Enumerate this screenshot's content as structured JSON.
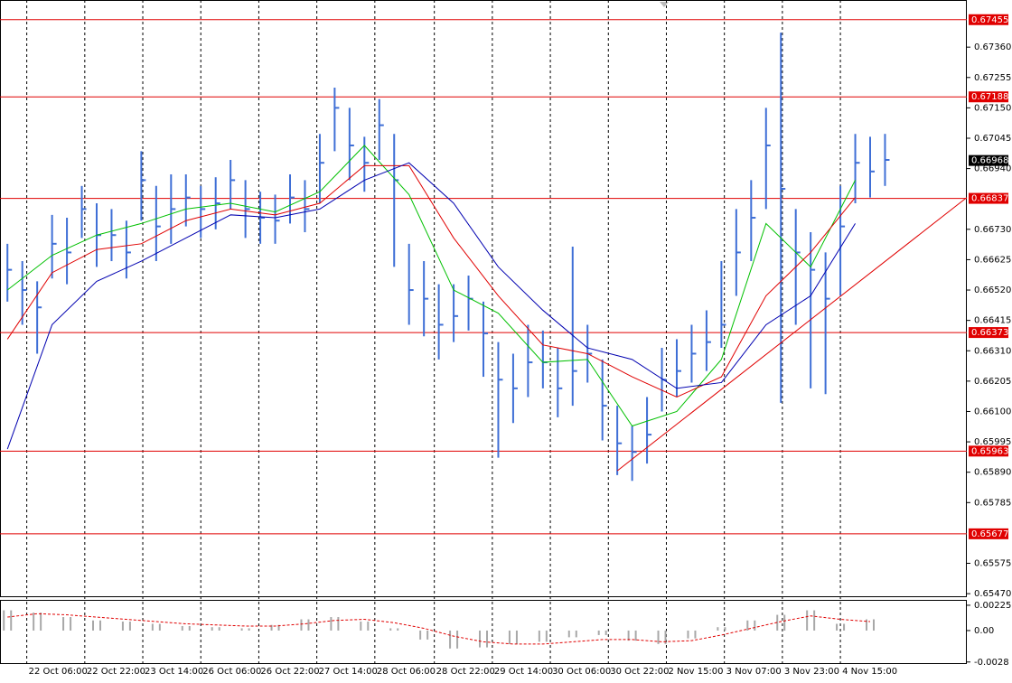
{
  "chart_data": [
    {
      "type": "ohlc",
      "xlim": [
        -0.5,
        64.5
      ],
      "ylim": [
        0.65461,
        0.67523
      ],
      "xticks": [
        {
          "value": 1.3,
          "label": "22 Oct 06:00"
        },
        {
          "value": 5.2,
          "label": "22 Oct 22:00"
        },
        {
          "value": 9.1,
          "label": "23 Oct 14:00"
        },
        {
          "value": 13.0,
          "label": "26 Oct 06:00"
        },
        {
          "value": 16.9,
          "label": "26 Oct 22:00"
        },
        {
          "value": 20.8,
          "label": "27 Oct 14:00"
        },
        {
          "value": 24.7,
          "label": "28 Oct 06:00"
        },
        {
          "value": 28.7,
          "label": "28 Oct 22:00"
        },
        {
          "value": 32.6,
          "label": "29 Oct 14:00"
        },
        {
          "value": 36.5,
          "label": "30 Oct 06:00"
        },
        {
          "value": 40.4,
          "label": "30 Oct 22:00"
        },
        {
          "value": 44.3,
          "label": "2 Nov 15:00"
        },
        {
          "value": 48.2,
          "label": "3 Nov 07:00"
        },
        {
          "value": 52.1,
          "label": "3 Nov 23:00"
        },
        {
          "value": 56.0,
          "label": "4 Nov 15:00"
        }
      ],
      "yticks": [
        {
          "value": 0.6736,
          "label": "0.67360"
        },
        {
          "value": 0.67255,
          "label": "0.67255"
        },
        {
          "value": 0.6715,
          "label": "0.67150"
        },
        {
          "value": 0.67045,
          "label": "0.67045"
        },
        {
          "value": 0.6694,
          "label": "0.66940"
        },
        {
          "value": 0.6673,
          "label": "0.66730"
        },
        {
          "value": 0.66625,
          "label": "0.66625"
        },
        {
          "value": 0.6652,
          "label": "0.66520"
        },
        {
          "value": 0.66415,
          "label": "0.66415"
        },
        {
          "value": 0.6631,
          "label": "0.66310"
        },
        {
          "value": 0.66205,
          "label": "0.66205"
        },
        {
          "value": 0.661,
          "label": "0.66100"
        },
        {
          "value": 0.65995,
          "label": "0.65995"
        },
        {
          "value": 0.6589,
          "label": "0.65890"
        },
        {
          "value": 0.65785,
          "label": "0.65785"
        },
        {
          "value": 0.65575,
          "label": "0.65575"
        },
        {
          "value": 0.6547,
          "label": "0.65470"
        }
      ],
      "color": "#3f6fd6",
      "high": [
        0.6668,
        0.6662,
        0.6655,
        0.6678,
        0.6677,
        0.6688,
        0.6682,
        0.668,
        0.6676,
        0.67,
        0.6688,
        0.6692,
        0.6692,
        0.6688,
        0.6691,
        0.6697,
        0.669,
        0.6686,
        0.6685,
        0.6692,
        0.669,
        0.6706,
        0.6722,
        0.6715,
        0.6705,
        0.6718,
        0.6706,
        0.6668,
        0.6662,
        0.6654,
        0.6654,
        0.6657,
        0.6648,
        0.6634,
        0.663,
        0.664,
        0.6638,
        0.6632,
        0.6667,
        0.664,
        0.6628,
        0.6612,
        0.6605,
        0.6615,
        0.6632,
        0.6635,
        0.664,
        0.6645,
        0.6662,
        0.668,
        0.669,
        0.6715,
        0.6741,
        0.668,
        0.6672,
        0.6665,
        0.6688,
        0.6706,
        0.6705,
        0.6706
      ],
      "low": [
        0.6648,
        0.664,
        0.663,
        0.6656,
        0.6654,
        0.667,
        0.666,
        0.6662,
        0.6656,
        0.6676,
        0.6662,
        0.6668,
        0.6674,
        0.667,
        0.6673,
        0.668,
        0.667,
        0.6668,
        0.6668,
        0.6675,
        0.6672,
        0.6682,
        0.67,
        0.669,
        0.6686,
        0.6697,
        0.666,
        0.664,
        0.6636,
        0.6628,
        0.6634,
        0.6638,
        0.6622,
        0.6594,
        0.6606,
        0.6615,
        0.6618,
        0.6608,
        0.6612,
        0.662,
        0.66,
        0.6588,
        0.6586,
        0.6592,
        0.661,
        0.6615,
        0.662,
        0.6624,
        0.6632,
        0.665,
        0.6662,
        0.668,
        0.6613,
        0.664,
        0.6618,
        0.6616,
        0.665,
        0.6682,
        0.6684,
        0.6688
      ],
      "close": [
        0.6659,
        0.6652,
        0.6646,
        0.6668,
        0.6665,
        0.668,
        0.6671,
        0.6671,
        0.6665,
        0.669,
        0.6674,
        0.668,
        0.6684,
        0.668,
        0.6682,
        0.669,
        0.668,
        0.6677,
        0.6676,
        0.6684,
        0.668,
        0.6696,
        0.6715,
        0.6702,
        0.6696,
        0.6709,
        0.669,
        0.6652,
        0.6649,
        0.664,
        0.6643,
        0.6649,
        0.6637,
        0.6621,
        0.6618,
        0.6627,
        0.6627,
        0.6618,
        0.6624,
        0.663,
        0.6612,
        0.6599,
        0.6596,
        0.6602,
        0.6621,
        0.6624,
        0.663,
        0.6634,
        0.664,
        0.6665,
        0.6677,
        0.6702,
        0.6687,
        0.6665,
        0.6659,
        0.6649,
        0.6674,
        0.6696,
        0.6693,
        0.6697
      ],
      "series": [
        {
          "color": "#00c000",
          "x": [
            0,
            3,
            6,
            9,
            12,
            15,
            18,
            21,
            24,
            27,
            30,
            33,
            36,
            39,
            42,
            45,
            48,
            51,
            54,
            57
          ],
          "values": [
            0.6652,
            0.6664,
            0.6671,
            0.6675,
            0.668,
            0.6682,
            0.6679,
            0.6686,
            0.6702,
            0.6685,
            0.6652,
            0.6644,
            0.6627,
            0.6628,
            0.6605,
            0.661,
            0.6628,
            0.6675,
            0.666,
            0.669
          ]
        },
        {
          "color": "#e00000",
          "x": [
            0,
            3,
            6,
            9,
            12,
            15,
            18,
            21,
            24,
            27,
            30,
            33,
            36,
            39,
            42,
            45,
            48,
            51,
            54,
            57
          ],
          "values": [
            0.6635,
            0.6658,
            0.6666,
            0.6668,
            0.6676,
            0.668,
            0.6678,
            0.6682,
            0.6695,
            0.6695,
            0.667,
            0.665,
            0.6633,
            0.663,
            0.6622,
            0.6615,
            0.6622,
            0.665,
            0.6665,
            0.6684
          ]
        },
        {
          "color": "#0000b0",
          "x": [
            0,
            3,
            6,
            9,
            12,
            15,
            18,
            21,
            24,
            27,
            30,
            33,
            36,
            39,
            42,
            45,
            48,
            51,
            54,
            57
          ],
          "values": [
            0.6597,
            0.664,
            0.6655,
            0.6662,
            0.667,
            0.6678,
            0.6677,
            0.668,
            0.669,
            0.6696,
            0.6682,
            0.666,
            0.6645,
            0.6632,
            0.6628,
            0.6618,
            0.662,
            0.664,
            0.665,
            0.6675
          ]
        }
      ],
      "trendline": {
        "color": "#e00000",
        "x": [
          41,
          64.5
        ],
        "values": [
          0.65895,
          0.6684
        ]
      },
      "levels": {
        "color": "#e00000",
        "values": [
          0.67455,
          0.67188,
          0.66837,
          0.66373,
          0.65963,
          0.65677
        ]
      },
      "current_price": 0.66968
    },
    {
      "type": "oscillator",
      "xlim": [
        -0.5,
        64.5
      ],
      "ylim": [
        -0.00298,
        0.00265
      ],
      "yticks": [
        0.002253,
        {
          "value": 0,
          "label": "0.00"
        },
        -0.0028
      ],
      "hist_color": "#a8a8a8",
      "x": [
        0,
        2,
        4,
        6,
        8,
        10,
        12,
        14,
        16,
        18,
        20,
        22,
        24,
        26,
        28,
        30,
        32,
        34,
        36,
        38,
        40,
        42,
        44,
        46,
        48,
        50,
        52,
        54,
        56,
        58
      ],
      "values": [
        0.0018,
        0.0016,
        0.0012,
        0.0009,
        0.0008,
        0.0006,
        0.0004,
        0.0003,
        0.0002,
        0.0005,
        0.001,
        0.0012,
        0.0008,
        0.0002,
        -0.0008,
        -0.0016,
        -0.0015,
        -0.0012,
        -0.001,
        -0.0006,
        -0.0004,
        -0.0009,
        -0.0012,
        -0.0007,
        0.0003,
        0.0009,
        0.0014,
        0.0018,
        0.0006,
        0.001
      ],
      "signal": {
        "color": "#e00000",
        "values": [
          0.0012,
          0.0015,
          0.0014,
          0.0012,
          0.001,
          0.0008,
          0.0006,
          0.0005,
          0.0004,
          0.0004,
          0.0006,
          0.0009,
          0.001,
          0.0007,
          0.0002,
          -0.0005,
          -0.001,
          -0.0012,
          -0.0012,
          -0.001,
          -0.0008,
          -0.0008,
          -0.001,
          -0.0009,
          -0.0004,
          0.0002,
          0.0008,
          0.0013,
          0.001,
          0.0008
        ]
      }
    }
  ]
}
